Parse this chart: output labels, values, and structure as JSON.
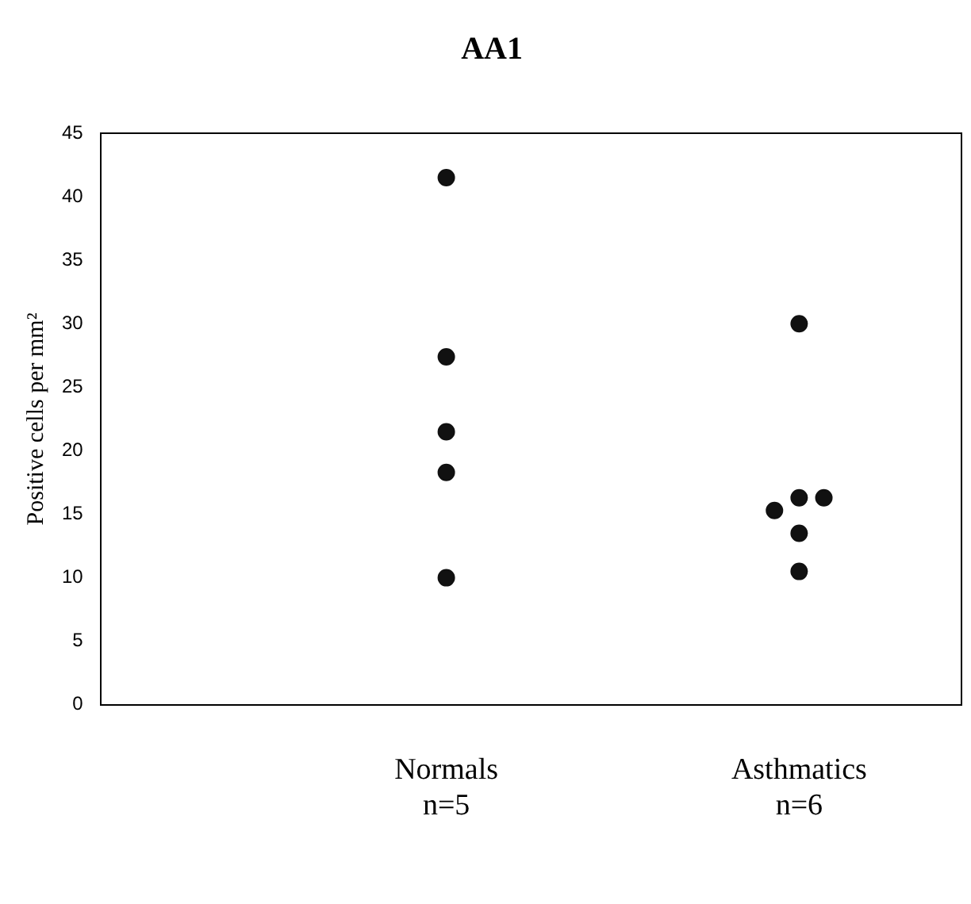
{
  "chart_data": {
    "type": "scatter",
    "title": "AA1",
    "ylabel": "Positive cells per mm²",
    "categories": [
      "Normals\nn=5",
      "Asthmatics\nn=6"
    ],
    "series": [
      {
        "color": "#111111",
        "x": [
          "Normals\nn=5",
          "Normals\nn=5",
          "Normals\nn=5",
          "Normals\nn=5",
          "Normals\nn=5"
        ],
        "values": [
          41.5,
          27.4,
          21.5,
          18.3,
          10
        ]
      },
      {
        "color": "#111111",
        "x": [
          "Asthmatics\nn=6",
          "Asthmatics\nn=6",
          "Asthmatics\nn=6",
          "Asthmatics\nn=6",
          "Asthmatics\nn=6",
          "Asthmatics\nn=6"
        ],
        "values": [
          30,
          16.3,
          15.3,
          16.3,
          13.5,
          10.5
        ]
      }
    ],
    "ylim": [
      0,
      45
    ],
    "yticks": [
      0,
      5,
      10,
      15,
      20,
      25,
      30,
      35,
      40,
      45
    ],
    "grid": false,
    "legend": false,
    "marker": "circle"
  }
}
